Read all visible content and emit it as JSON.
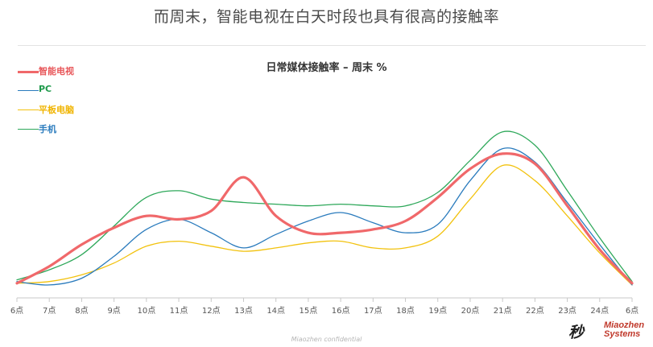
{
  "page": {
    "title": "而周末，智能电视在白天时段也具有很高的接触率",
    "footer": "Miaozhen confidential",
    "logo": {
      "symbol": "秒",
      "wordmark_line1": "Miaozhen",
      "wordmark_line2": "Systems"
    }
  },
  "chart_data": {
    "type": "line",
    "title": "日常媒体接触率 – 周末 %",
    "xlabel": "",
    "ylabel": "",
    "grid": false,
    "legend_position": "top-left",
    "y_axis_visible": false,
    "ylim": [
      0,
      100
    ],
    "categories": [
      "6点",
      "7点",
      "8点",
      "9点",
      "10点",
      "11点",
      "12点",
      "13点",
      "14点",
      "15点",
      "16点",
      "17点",
      "18点",
      "19点",
      "20点",
      "21点",
      "22点",
      "23点",
      "24点",
      "6点"
    ],
    "series": [
      {
        "name": "智能电视",
        "color": "#f0686a",
        "width": 3.2,
        "values": [
          2,
          12,
          25,
          35,
          42,
          40,
          45,
          65,
          42,
          32,
          32,
          34,
          39,
          53,
          70,
          79,
          73,
          48,
          22,
          2
        ]
      },
      {
        "name": "PC",
        "color": "#2a7bbd",
        "width": 1.3,
        "values": [
          3,
          1,
          5,
          18,
          34,
          40,
          32,
          23,
          31,
          39,
          44,
          38,
          32,
          37,
          63,
          82,
          74,
          50,
          25,
          1
        ]
      },
      {
        "name": "平板电脑",
        "color": "#f2c20e",
        "width": 1.3,
        "values": [
          2,
          3,
          7,
          14,
          24,
          27,
          24,
          21,
          23,
          26,
          27,
          23,
          23,
          30,
          52,
          72,
          63,
          42,
          20,
          1
        ]
      },
      {
        "name": "手机",
        "color": "#2ea85a",
        "width": 1.3,
        "values": [
          4,
          10,
          19,
          36,
          53,
          57,
          52,
          50,
          49,
          48,
          49,
          48,
          48,
          56,
          75,
          92,
          84,
          57,
          29,
          3
        ]
      }
    ]
  },
  "legend": [
    {
      "label": "智能电视",
      "line_color": "#f0686a",
      "text_color": "#e8575a",
      "thickness": 3.2
    },
    {
      "label": "PC",
      "line_color": "#2a7bbd",
      "text_color": "#1f9a4b",
      "thickness": 1.2
    },
    {
      "label": "平板电脑",
      "line_color": "#f2c20e",
      "text_color": "#f0b400",
      "thickness": 1.2
    },
    {
      "label": "手机",
      "line_color": "#2ea85a",
      "text_color": "#2a7bbd",
      "thickness": 1.2
    }
  ]
}
